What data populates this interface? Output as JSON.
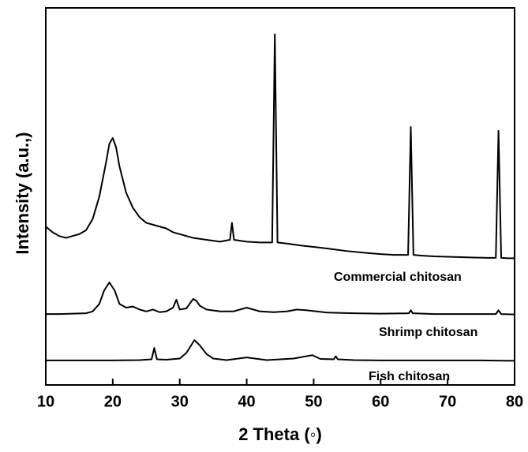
{
  "chart_data": {
    "type": "line",
    "xlabel": "2 Theta (◦)",
    "ylabel": "Intensity (a.u.,)",
    "xlim": [
      10,
      80
    ],
    "xticks": [
      10,
      20,
      30,
      40,
      50,
      60,
      70,
      80
    ],
    "ylim": [
      0,
      100
    ],
    "series": [
      {
        "name": "Commercial chitosan",
        "color": "#000000",
        "x": [
          10,
          11,
          12,
          13,
          14,
          15,
          16,
          17,
          18,
          19,
          19.5,
          20,
          20.5,
          21,
          22,
          23,
          24,
          25,
          26,
          27,
          28,
          29,
          30,
          31,
          32,
          34,
          36,
          37.5,
          37.8,
          38.1,
          40,
          42,
          43.8,
          44.2,
          44.6,
          46,
          48,
          50,
          52,
          55,
          58,
          60,
          62,
          64.1,
          64.5,
          64.9,
          66,
          68,
          70,
          72,
          74,
          76,
          77.2,
          77.6,
          78,
          79,
          80
        ],
        "values": [
          42,
          40.5,
          39.5,
          39,
          39.5,
          40,
          41,
          44,
          50,
          59,
          64,
          65.5,
          63,
          58,
          51,
          47,
          44.5,
          43,
          42.5,
          42,
          41.5,
          40.5,
          40,
          39.5,
          39,
          38.5,
          38,
          38.5,
          43,
          38.5,
          38,
          37.8,
          37.8,
          93,
          37.8,
          37.5,
          37,
          36.6,
          36.2,
          35.5,
          35,
          34.7,
          34.5,
          34.5,
          68.4,
          34.5,
          34.3,
          34.1,
          34,
          33.9,
          33.8,
          33.7,
          33.7,
          67.4,
          33.7,
          33.6,
          33.6
        ]
      },
      {
        "name": "Shrimp chitosan",
        "color": "#000000",
        "x": [
          10,
          12,
          14,
          16,
          17,
          18,
          18.7,
          19.5,
          20.3,
          21,
          22,
          23,
          24,
          25,
          26,
          27,
          28,
          29,
          29.5,
          30,
          31,
          32,
          32.5,
          33,
          34,
          36,
          38,
          40,
          42,
          44,
          46,
          47.5,
          49,
          52,
          56,
          60,
          64.2,
          64.5,
          64.8,
          68,
          72,
          77.2,
          77.6,
          78,
          80
        ],
        "values": [
          18.8,
          18.8,
          18.9,
          19,
          19.5,
          21.5,
          25,
          27.2,
          25,
          21.5,
          20.5,
          20.8,
          20,
          19.5,
          20,
          19.3,
          19.5,
          20.5,
          22.6,
          20,
          20.3,
          22.8,
          22.3,
          21,
          20,
          19.5,
          19.5,
          20.5,
          19.5,
          19.3,
          19.5,
          20,
          19.8,
          19.2,
          19,
          18.9,
          19,
          19.8,
          19,
          18.8,
          18.8,
          18.8,
          19.8,
          18.8,
          18.7
        ]
      },
      {
        "name": "Fish chitosan",
        "color": "#000000",
        "x": [
          10,
          15,
          20,
          24,
          25.8,
          26.2,
          26.6,
          28,
          30,
          31,
          32.2,
          33,
          34,
          35,
          37,
          40,
          43,
          47,
          49.8,
          51,
          53,
          53.3,
          53.6,
          56,
          60,
          65,
          70,
          75,
          80
        ],
        "values": [
          6.5,
          6.5,
          6.5,
          6.6,
          6.8,
          9.8,
          6.8,
          6.7,
          7,
          8.5,
          11.9,
          10.5,
          8.2,
          7,
          6.6,
          7.3,
          6.6,
          7,
          7.9,
          6.9,
          6.8,
          7.6,
          6.8,
          6.6,
          6.5,
          6.5,
          6.5,
          6.5,
          6.4
        ]
      }
    ]
  }
}
